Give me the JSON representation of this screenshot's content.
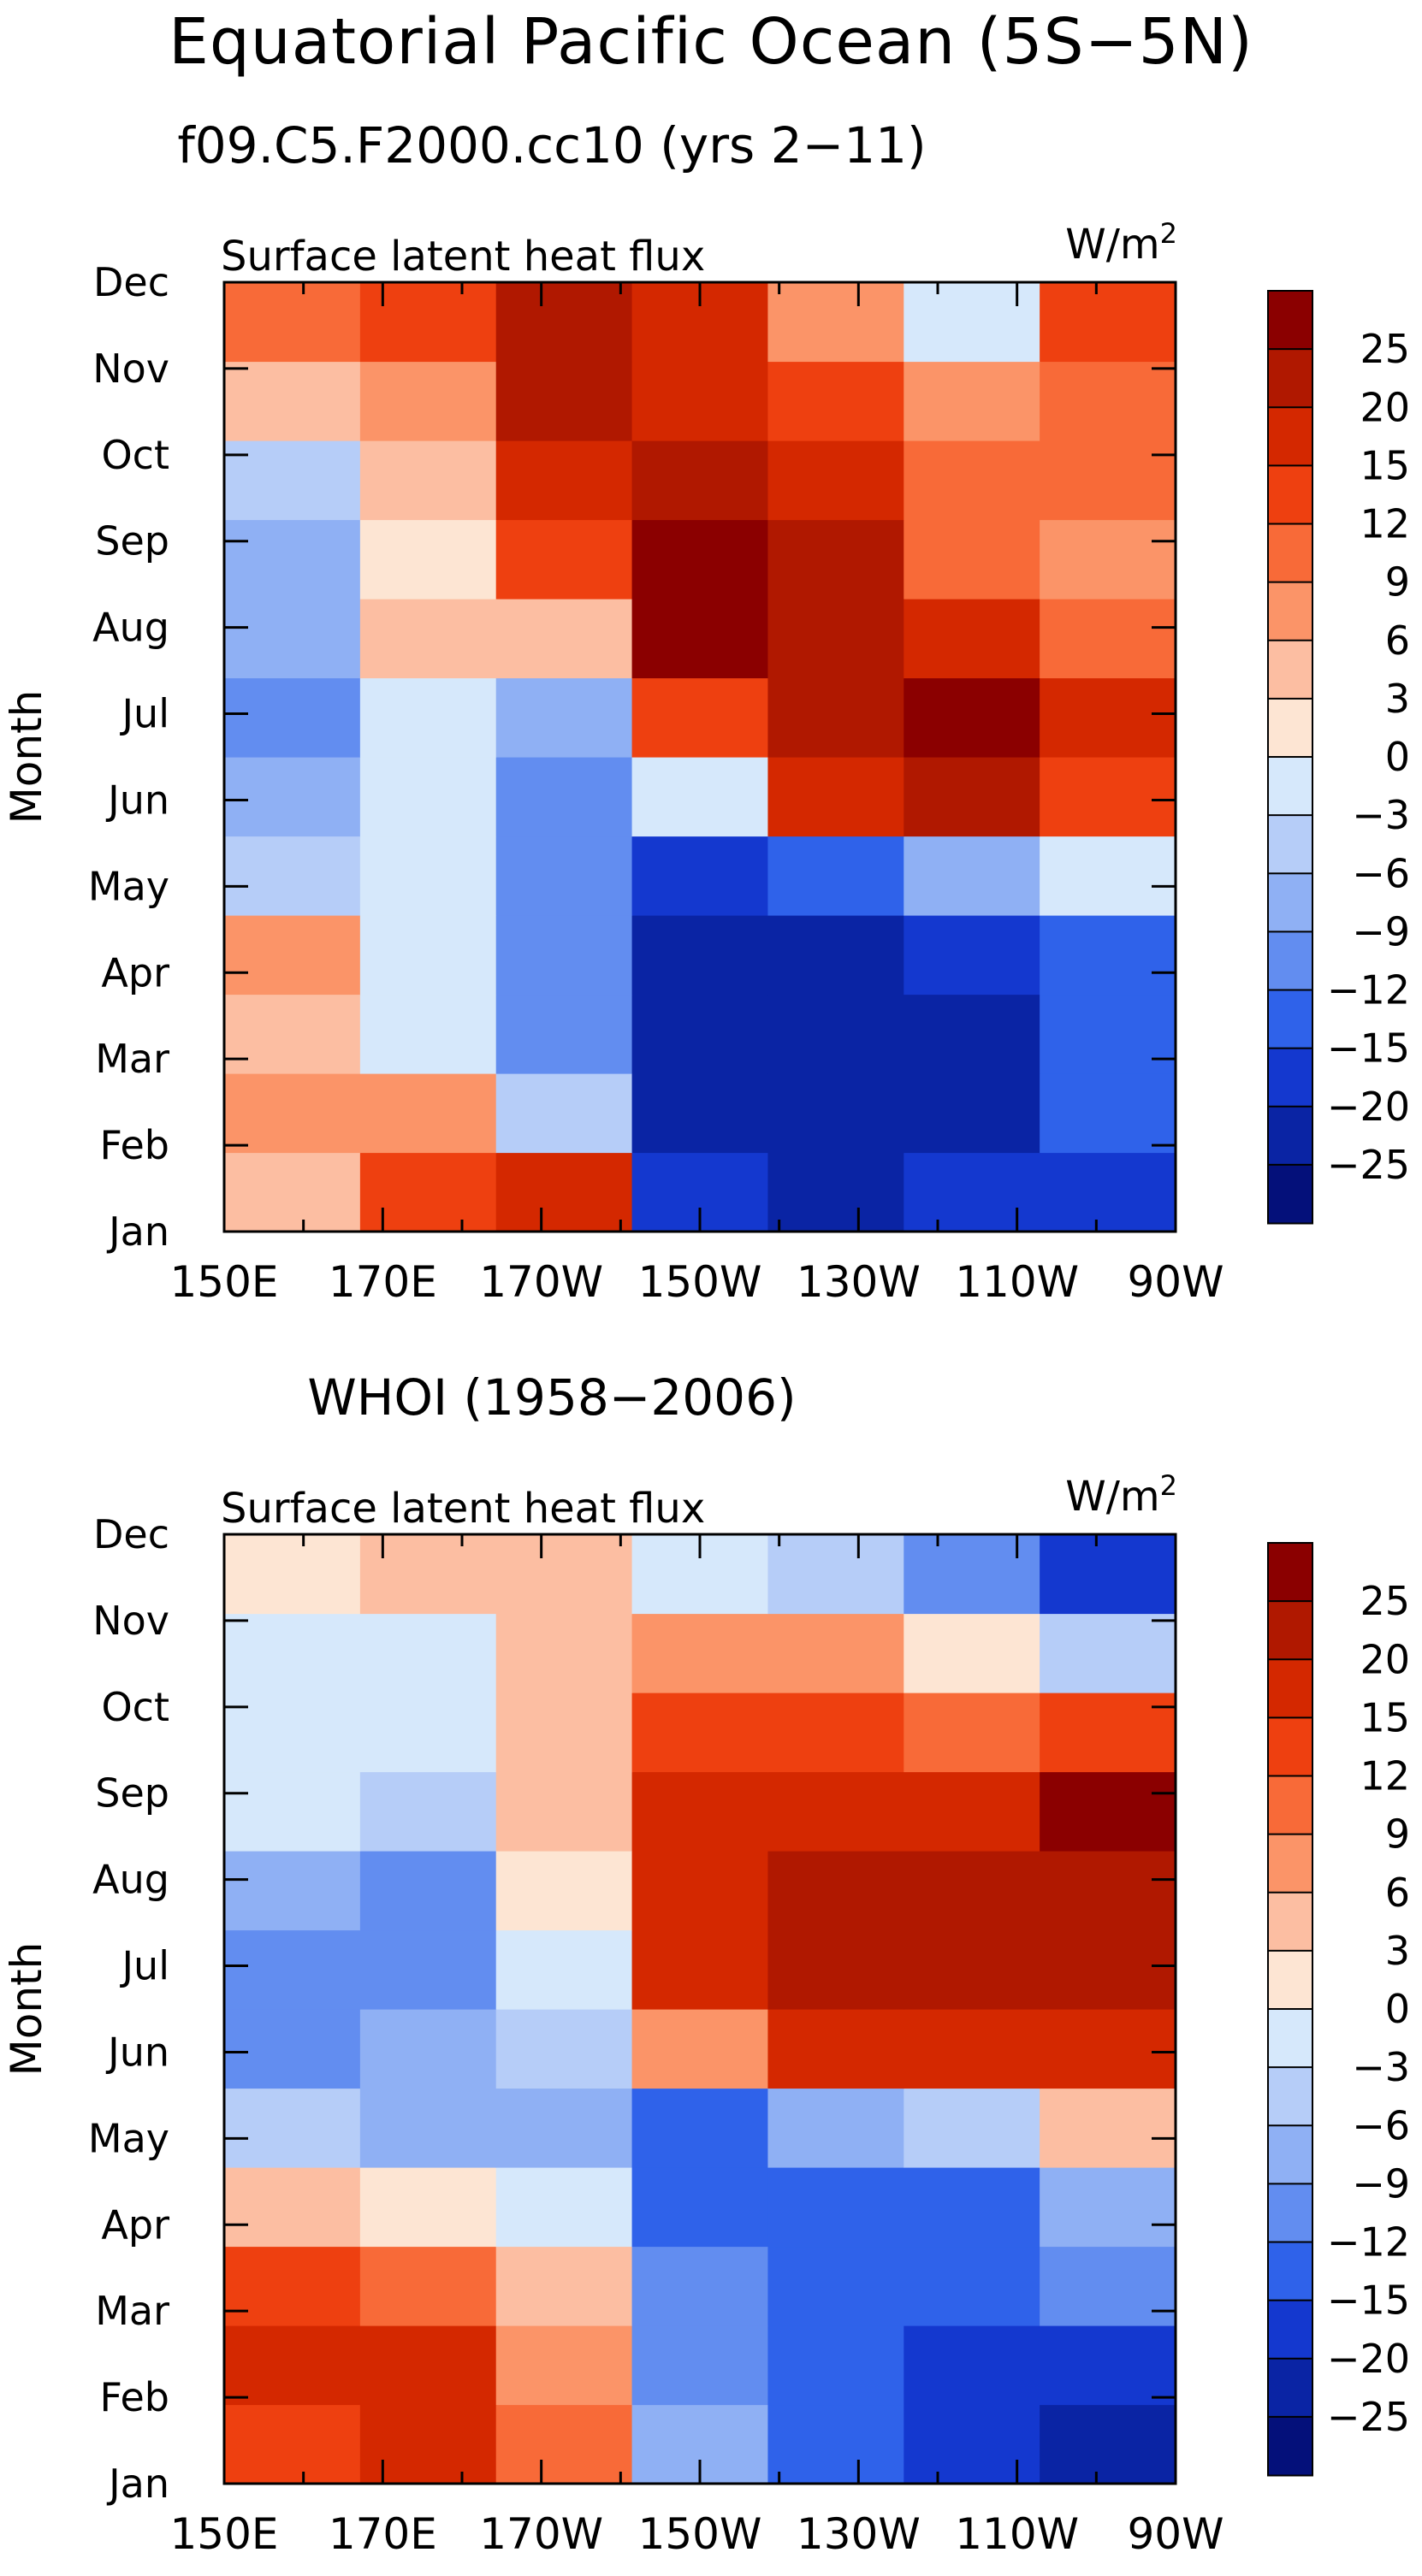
{
  "title": "Equatorial Pacific Ocean (5S−5N)",
  "colorbar": {
    "levels": [
      25,
      20,
      15,
      12,
      9,
      6,
      3,
      0,
      -3,
      -6,
      -9,
      -12,
      -15,
      -20,
      -25
    ],
    "labels": [
      "25",
      "20",
      "15",
      "12",
      "9",
      "6",
      "3",
      "0",
      "−3",
      "−6",
      "−9",
      "−12",
      "−15",
      "−20",
      "−25"
    ],
    "colors": [
      "#8b0000",
      "#b01800",
      "#d42800",
      "#ee4010",
      "#f86a38",
      "#fb9468",
      "#fcbea2",
      "#fde5d3",
      "#d6e8fb",
      "#b6cdf8",
      "#8fb0f4",
      "#628df0",
      "#2f62ea",
      "#1438cf",
      "#0a24a4",
      "#04107a"
    ]
  },
  "chart_data": [
    {
      "type": "heatmap",
      "subtitle": "f09.C5.F2000.cc10 (yrs 2−11)",
      "panel_label": "Surface latent heat flux",
      "units": "W/m",
      "units_sup": "2",
      "ylabel": "Month",
      "x": [
        "150E",
        "170E",
        "170W",
        "150W",
        "130W",
        "110W",
        "90W"
      ],
      "y": [
        "Jan",
        "Feb",
        "Mar",
        "Apr",
        "May",
        "Jun",
        "Jul",
        "Aug",
        "Sep",
        "Oct",
        "Nov",
        "Dec"
      ],
      "values": [
        [
          3,
          12,
          15,
          -20,
          -25,
          -20,
          -20
        ],
        [
          6,
          6,
          -6,
          -25,
          -25,
          -25,
          -15
        ],
        [
          3,
          -3,
          -12,
          -25,
          -25,
          -25,
          -15
        ],
        [
          6,
          -3,
          -12,
          -25,
          -25,
          -20,
          -15
        ],
        [
          -6,
          -3,
          -12,
          -20,
          -15,
          -9,
          -3
        ],
        [
          -9,
          -3,
          -12,
          -3,
          15,
          20,
          12
        ],
        [
          -12,
          -3,
          -9,
          12,
          20,
          25,
          15
        ],
        [
          -9,
          3,
          3,
          25,
          20,
          15,
          9
        ],
        [
          -9,
          0,
          12,
          25,
          20,
          9,
          6
        ],
        [
          -6,
          3,
          15,
          20,
          15,
          9,
          9
        ],
        [
          3,
          6,
          20,
          15,
          12,
          6,
          9
        ],
        [
          9,
          12,
          20,
          15,
          6,
          -3,
          12
        ]
      ]
    },
    {
      "type": "heatmap",
      "subtitle": "WHOI (1958−2006)",
      "panel_label": "Surface latent heat flux",
      "units": "W/m",
      "units_sup": "2",
      "ylabel": "Month",
      "x": [
        "150E",
        "170E",
        "170W",
        "150W",
        "130W",
        "110W",
        "90W"
      ],
      "y": [
        "Jan",
        "Feb",
        "Mar",
        "Apr",
        "May",
        "Jun",
        "Jul",
        "Aug",
        "Sep",
        "Oct",
        "Nov",
        "Dec"
      ],
      "values": [
        [
          12,
          15,
          9,
          -9,
          -15,
          -20,
          -25
        ],
        [
          15,
          15,
          6,
          -12,
          -15,
          -20,
          -20
        ],
        [
          12,
          9,
          3,
          -12,
          -15,
          -15,
          -12
        ],
        [
          3,
          0,
          -3,
          -15,
          -15,
          -15,
          -9
        ],
        [
          -6,
          -9,
          -9,
          -15,
          -9,
          -6,
          3
        ],
        [
          -12,
          -9,
          -6,
          6,
          15,
          15,
          15
        ],
        [
          -12,
          -12,
          -3,
          15,
          20,
          20,
          20
        ],
        [
          -9,
          -12,
          0,
          15,
          20,
          20,
          20
        ],
        [
          -3,
          -6,
          3,
          15,
          15,
          15,
          25
        ],
        [
          -3,
          -3,
          3,
          12,
          12,
          9,
          12
        ],
        [
          -3,
          -3,
          3,
          6,
          6,
          0,
          -6
        ],
        [
          0,
          3,
          3,
          -3,
          -6,
          -12,
          -20
        ]
      ]
    }
  ]
}
